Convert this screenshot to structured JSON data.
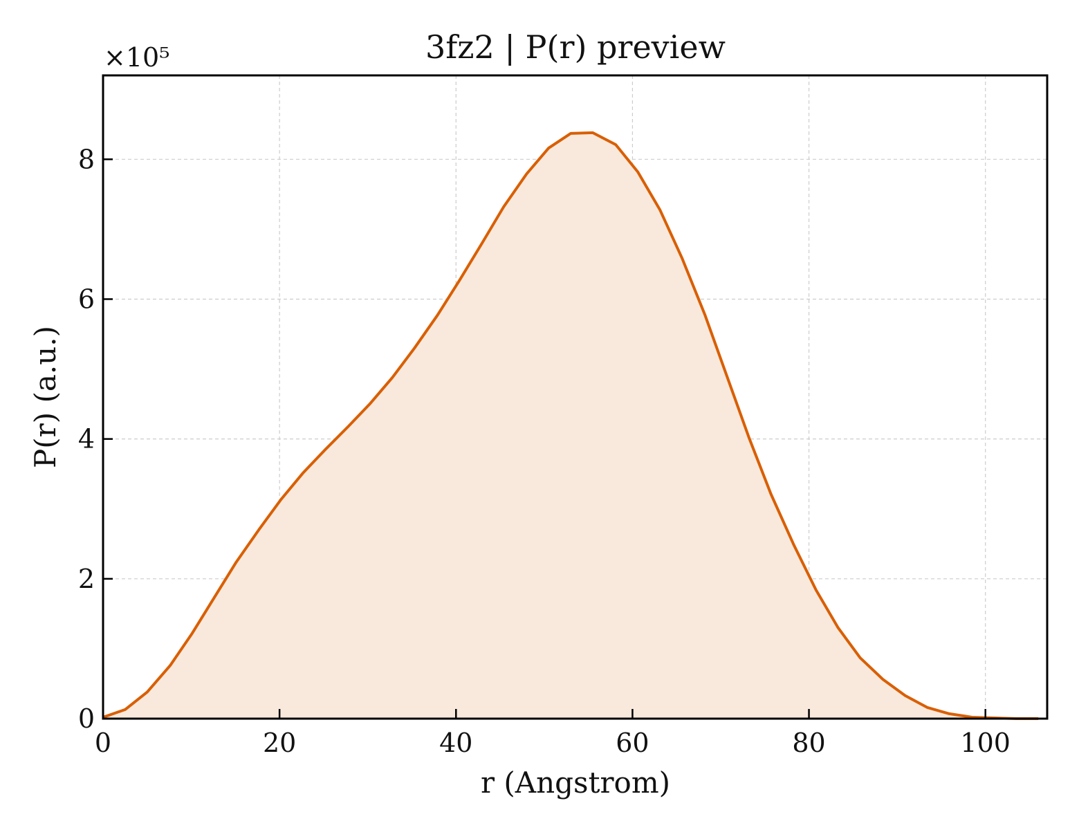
{
  "chart_data": {
    "type": "area",
    "title": "3fz2 | P(r) preview",
    "xlabel": "r (Angstrom)",
    "ylabel": "P(r) (a.u.)",
    "y_multiplier_label": "×10⁵",
    "y_multiplier": 100000,
    "xlim": [
      0,
      107
    ],
    "ylim": [
      0,
      9.2
    ],
    "xticks": [
      0,
      20,
      40,
      60,
      80,
      100
    ],
    "yticks": [
      0,
      2,
      4,
      6,
      8
    ],
    "grid": true,
    "line_color": "#d95f02",
    "fill_color": "#f9e9dd",
    "x": [
      0,
      2.5,
      5,
      7.6,
      10.1,
      12.6,
      15.1,
      17.7,
      20.2,
      22.7,
      25.2,
      27.8,
      30.3,
      32.8,
      35.3,
      37.9,
      40.4,
      42.9,
      45.4,
      48,
      50.5,
      53,
      55.5,
      58.1,
      60.6,
      63.1,
      65.6,
      68.2,
      70.7,
      73.2,
      75.7,
      78.3,
      80.8,
      83.3,
      85.8,
      88.4,
      90.9,
      93.4,
      95.9,
      98.5,
      101,
      103.5,
      106
    ],
    "y": [
      0.02,
      0.13,
      0.38,
      0.76,
      1.22,
      1.73,
      2.24,
      2.71,
      3.14,
      3.52,
      3.85,
      4.18,
      4.51,
      4.88,
      5.3,
      5.77,
      6.27,
      6.79,
      7.32,
      7.79,
      8.16,
      8.37,
      8.38,
      8.21,
      7.82,
      7.28,
      6.59,
      5.78,
      4.9,
      4.02,
      3.21,
      2.48,
      1.84,
      1.3,
      0.87,
      0.56,
      0.33,
      0.16,
      0.07,
      0.02,
      0.01,
      0.0,
      0.0
    ]
  }
}
